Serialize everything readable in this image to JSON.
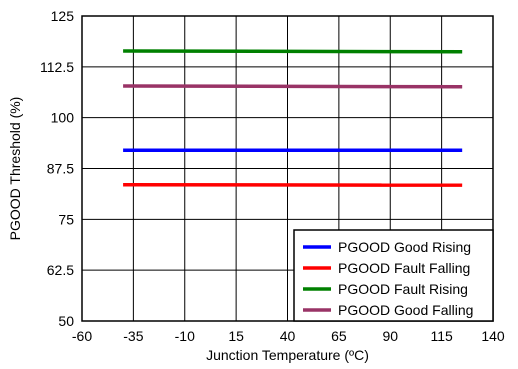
{
  "chart_data": {
    "type": "line",
    "title": "",
    "xlabel": "Junction Temperature (ºC)",
    "ylabel": "PGOOD Threshold (%)",
    "xlim": [
      -60,
      140
    ],
    "ylim": [
      50,
      125
    ],
    "xticks": [
      "-60",
      "-35",
      "-10",
      "15",
      "40",
      "65",
      "90",
      "115",
      "140"
    ],
    "yticks": [
      "50",
      "62.5",
      "75",
      "87.5",
      "100",
      "112.5",
      "125"
    ],
    "grid": true,
    "legend_position": "bottom-right",
    "series": [
      {
        "name": "PGOOD Good Rising",
        "color": "#0000ff",
        "x": [
          -40,
          125
        ],
        "y": [
          92,
          92
        ]
      },
      {
        "name": "PGOOD Fault Falling",
        "color": "#ff0000",
        "x": [
          -40,
          125
        ],
        "y": [
          83.5,
          83.4
        ]
      },
      {
        "name": "PGOOD Fault Rising",
        "color": "#008000",
        "x": [
          -40,
          125
        ],
        "y": [
          116.4,
          116.2
        ]
      },
      {
        "name": "PGOOD Good Falling",
        "color": "#993366",
        "x": [
          -40,
          125
        ],
        "y": [
          107.8,
          107.6
        ]
      }
    ]
  }
}
